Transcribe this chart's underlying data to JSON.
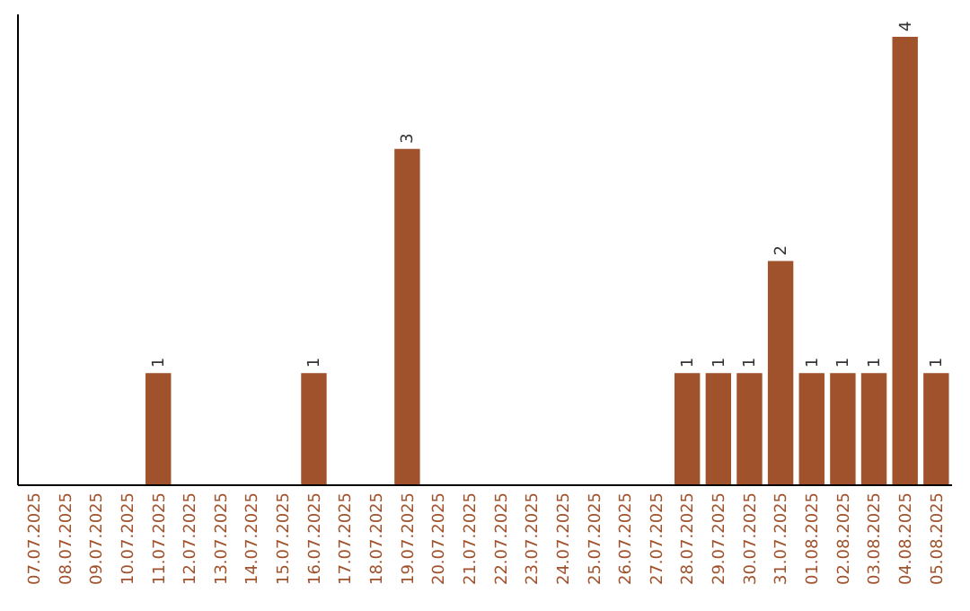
{
  "chart_data": {
    "type": "bar",
    "categories": [
      "07.07.2025",
      "08.07.2025",
      "09.07.2025",
      "10.07.2025",
      "11.07.2025",
      "12.07.2025",
      "13.07.2025",
      "14.07.2025",
      "15.07.2025",
      "16.07.2025",
      "17.07.2025",
      "18.07.2025",
      "19.07.2025",
      "20.07.2025",
      "21.07.2025",
      "22.07.2025",
      "23.07.2025",
      "24.07.2025",
      "25.07.2025",
      "26.07.2025",
      "27.07.2025",
      "28.07.2025",
      "29.07.2025",
      "30.07.2025",
      "31.07.2025",
      "01.08.2025",
      "02.08.2025",
      "03.08.2025",
      "04.08.2025",
      "05.08.2025"
    ],
    "values": [
      0,
      0,
      0,
      0,
      1,
      0,
      0,
      0,
      0,
      1,
      0,
      0,
      3,
      0,
      0,
      0,
      0,
      0,
      0,
      0,
      0,
      1,
      1,
      1,
      2,
      1,
      1,
      1,
      4,
      1
    ],
    "value_labels": [
      null,
      null,
      null,
      null,
      "1",
      null,
      null,
      null,
      null,
      "1",
      null,
      null,
      "3",
      null,
      null,
      null,
      null,
      null,
      null,
      null,
      null,
      "1",
      "1",
      "1",
      "2",
      "1",
      "1",
      "1",
      "4",
      "1"
    ],
    "color": "#a0522d",
    "grid": false
  }
}
